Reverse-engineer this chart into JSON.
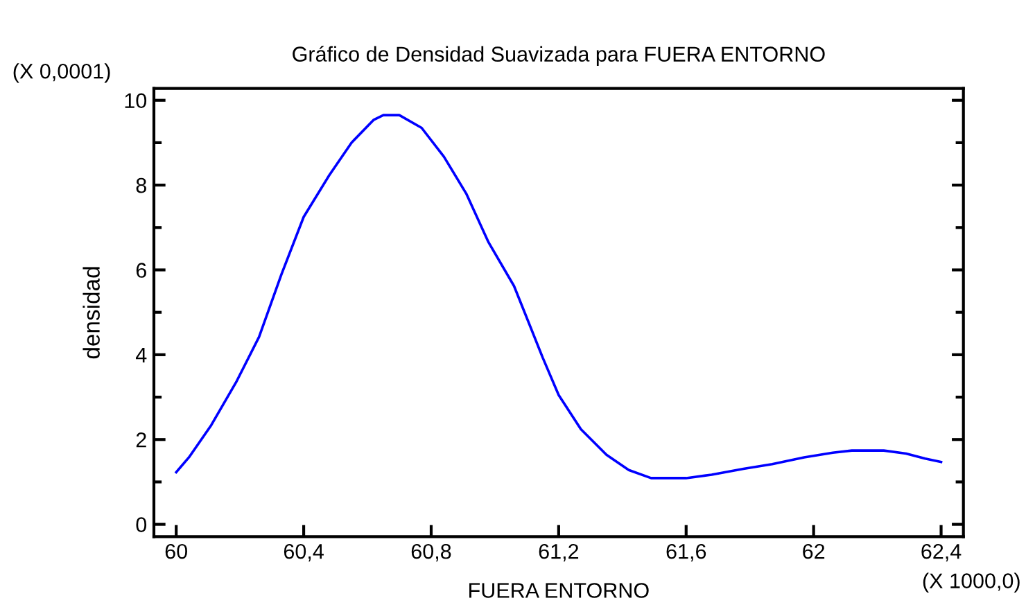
{
  "chart_data": {
    "type": "line",
    "title": "Gráfico de Densidad Suavizada para FUERA ENTORNO",
    "xlabel": "FUERA ENTORNO",
    "ylabel": "densidad",
    "annotations": [
      "(X 0,0001)",
      "(X 1000,0)"
    ],
    "series": [
      {
        "color": "#0000ff",
        "x": [
          60,
          60.04,
          60.11,
          60.19,
          60.26,
          60.33,
          60.4,
          60.48,
          60.55,
          60.62,
          60.65,
          60.7,
          60.77,
          60.84,
          60.91,
          60.98,
          61.06,
          61.15,
          61.2,
          61.27,
          61.35,
          61.42,
          61.49,
          61.6,
          61.68,
          61.78,
          61.87,
          61.97,
          62.06,
          62.12,
          62.22,
          62.29,
          62.35,
          62.4
        ],
        "values": [
          1.23,
          1.58,
          2.34,
          3.38,
          4.42,
          5.89,
          7.25,
          8.23,
          9.0,
          9.54,
          9.65,
          9.65,
          9.35,
          8.67,
          7.8,
          6.65,
          5.62,
          3.93,
          3.05,
          2.24,
          1.64,
          1.28,
          1.09,
          1.09,
          1.17,
          1.31,
          1.42,
          1.58,
          1.69,
          1.74,
          1.74,
          1.67,
          1.55,
          1.47
        ]
      }
    ],
    "xlim": [
      59.93,
      62.47
    ],
    "ylim": [
      -0.29,
      10.28
    ],
    "xticks": [
      60,
      {
        "value": 60.4,
        "label": "60,4"
      },
      {
        "value": 60.8,
        "label": "60,8"
      },
      {
        "value": 61.2,
        "label": "61,2"
      },
      {
        "value": 61.6,
        "label": "61,6"
      },
      62,
      {
        "value": 62.4,
        "label": "62,4"
      }
    ],
    "yticks": [
      0,
      {
        "value": 1,
        "label": null
      },
      2,
      {
        "value": 3,
        "label": null
      },
      4,
      {
        "value": 5,
        "label": null
      },
      6,
      {
        "value": 7,
        "label": null
      },
      8,
      {
        "value": 9,
        "label": null
      },
      10
    ],
    "marker": "none",
    "line_style": "solid"
  }
}
